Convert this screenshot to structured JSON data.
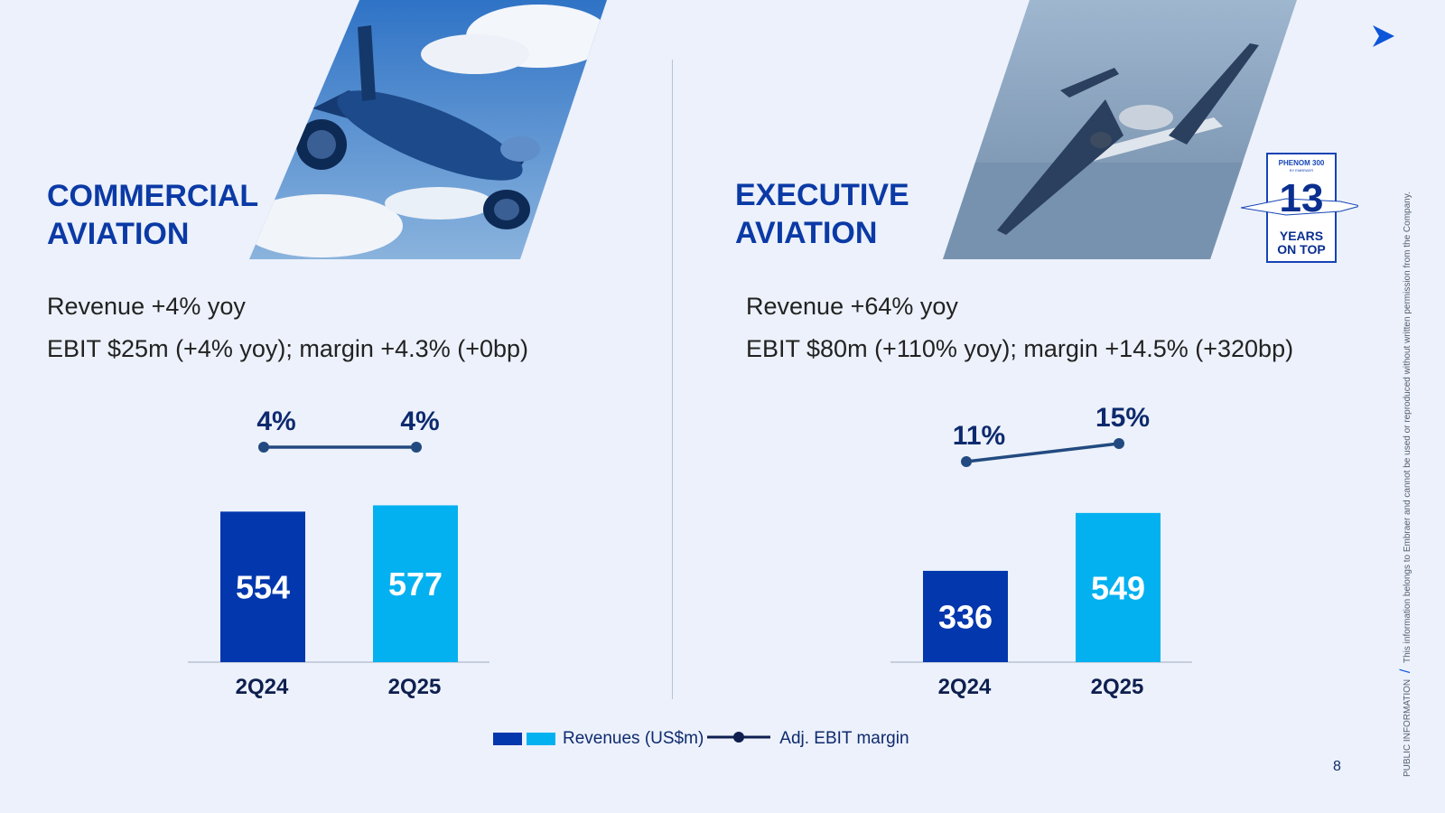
{
  "colors": {
    "bar_2q24": "#0337ad",
    "bar_2q25": "#03b1f0",
    "line": "#224a80",
    "title": "#0b3aa6"
  },
  "commercial": {
    "title_line1": "COMMERCIAL",
    "title_line2": "AVIATION",
    "revenue_text": "Revenue +4% yoy",
    "ebit_text": "EBIT $25m (+4% yoy); margin +4.3% (+0bp)"
  },
  "executive": {
    "title_line1": "EXECUTIVE",
    "title_line2": "AVIATION",
    "revenue_text": "Revenue +64% yoy",
    "ebit_text": "EBIT $80m (+110% yoy); margin +14.5% (+320bp)",
    "badge": {
      "brand": "PHENOM 300",
      "sub": "BY EMBRAER",
      "number": "13",
      "line1": "YEARS",
      "line2": "ON TOP"
    }
  },
  "chart_data": [
    {
      "type": "bar",
      "categories": [
        "2Q24",
        "2Q25"
      ],
      "series": [
        {
          "name": "Revenues (US$m)",
          "values": [
            554,
            577
          ],
          "value_labels": [
            "554",
            "577"
          ]
        },
        {
          "name": "Adj. EBIT margin",
          "type": "line",
          "values": [
            4,
            4
          ],
          "value_labels": [
            "4%",
            "4%"
          ]
        }
      ]
    },
    {
      "type": "bar",
      "categories": [
        "2Q24",
        "2Q25"
      ],
      "series": [
        {
          "name": "Revenues (US$m)",
          "values": [
            336,
            549
          ],
          "value_labels": [
            "336",
            "549"
          ]
        },
        {
          "name": "Adj. EBIT margin",
          "type": "line",
          "values": [
            11,
            15
          ],
          "value_labels": [
            "11%",
            "15%"
          ]
        }
      ]
    }
  ],
  "legend": {
    "revenues": "Revenues (US$m)",
    "margin": "Adj. EBIT margin"
  },
  "footer": {
    "classification": "PUBLIC INFORMATION",
    "separator": "/",
    "disclaimer": "This information belongs to Embraer and cannot be used or reproduced without written permission from the Company.",
    "page_number": "8"
  },
  "icons": {
    "top_right": "arrow-right-icon"
  }
}
